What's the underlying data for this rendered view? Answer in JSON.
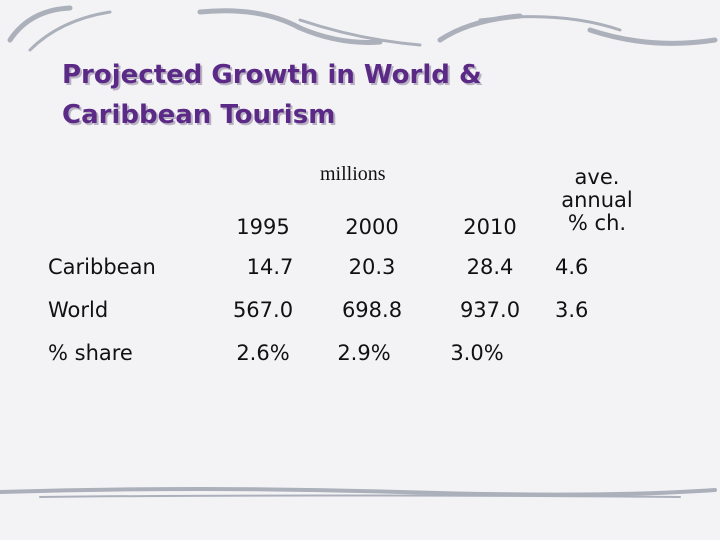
{
  "title": {
    "lines": [
      "Projected Growth in World &",
      "Caribbean Tourism"
    ]
  },
  "table": {
    "unit": "millions",
    "header": [
      "1995",
      "2000",
      "2010",
      [
        "ave.",
        "annual",
        "% ch."
      ]
    ],
    "rows": [
      [
        "Caribbean",
        "14.7",
        "20.3",
        "28.4",
        "4.6"
      ],
      [
        "World",
        "567.0",
        "698.8",
        "937.0",
        "3.6"
      ],
      [
        "% share",
        "2.6%",
        "2.9%",
        "3.0%"
      ]
    ]
  }
}
